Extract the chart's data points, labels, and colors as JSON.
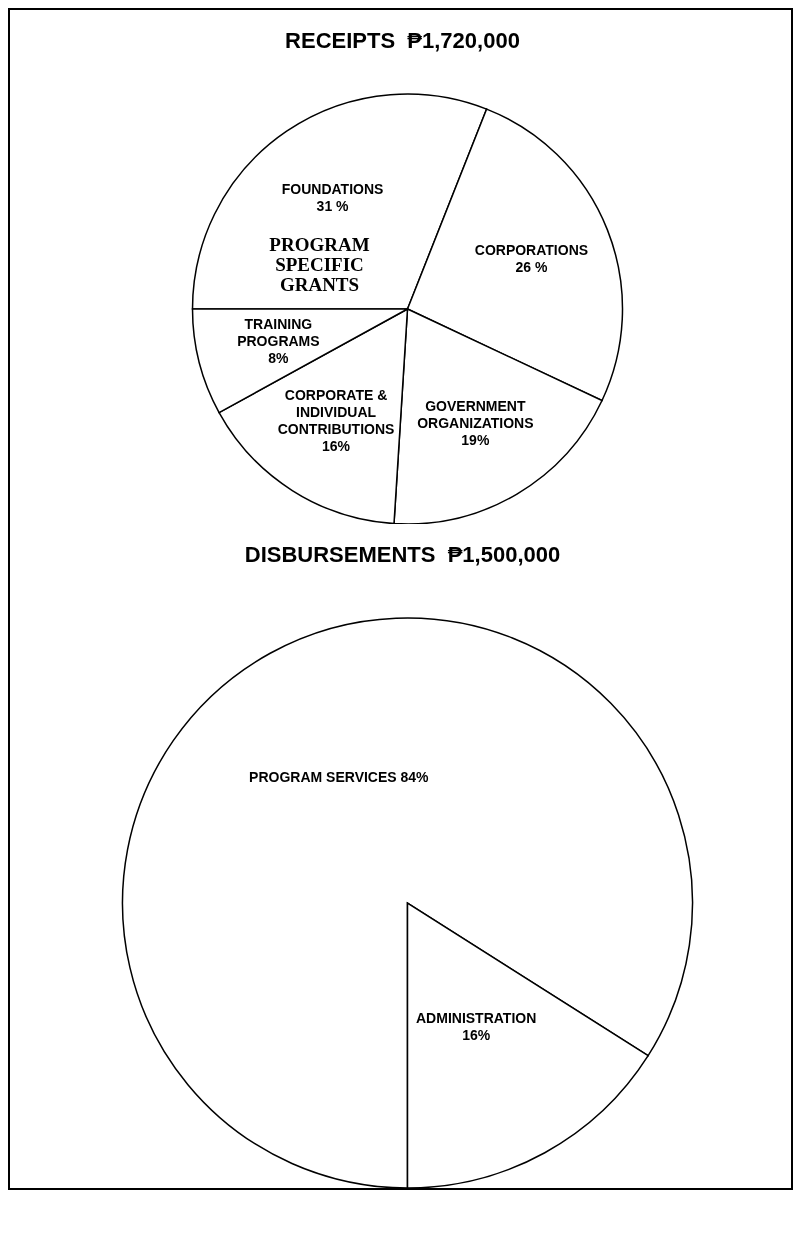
{
  "chart_data": [
    {
      "type": "pie",
      "title": "RECEIPTS  ₱1,720,000",
      "categories": [
        "FOUNDATIONS",
        "CORPORATIONS",
        "GOVERNMENT ORGANIZATIONS",
        "CORPORATE & INDIVIDUAL CONTRIBUTIONS",
        "TRAINING PROGRAMS"
      ],
      "values": [
        31,
        26,
        19,
        16,
        8
      ],
      "value_labels": [
        "31 %",
        "26 %",
        "19%",
        "16%",
        "8%"
      ],
      "colors": [
        "#ffffff",
        "#ffffff",
        "#ffffff",
        "#ffffff",
        "#ffffff"
      ],
      "annotations": [
        "PROGRAM SPECIFIC GRANTS"
      ]
    },
    {
      "type": "pie",
      "title": "DISBURSEMENTS  ₱1,500,000",
      "categories": [
        "PROGRAM SERVICES",
        "ADMINISTRATION"
      ],
      "values": [
        84,
        16
      ],
      "value_labels": [
        "84%",
        "16%"
      ],
      "colors": [
        "#ffffff",
        "#ffffff"
      ]
    }
  ]
}
